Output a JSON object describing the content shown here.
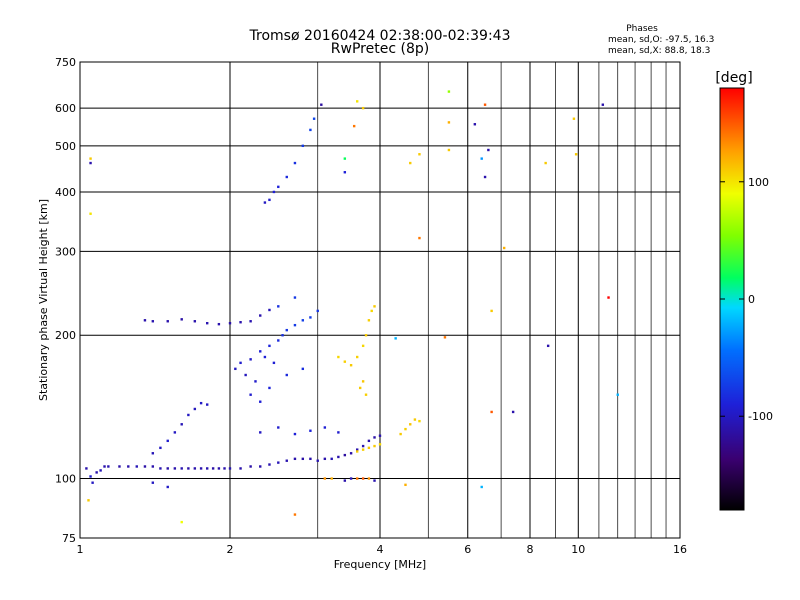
{
  "chart_data": {
    "type": "scatter",
    "title": "Tromsø 20160424 02:38:00-02:39:43",
    "subtitle": "RwPretec (8p)",
    "xlabel": "Frequency [MHz]",
    "ylabel": "Stationary phase Virtual Height [km]",
    "x_scale": "log",
    "y_scale": "log",
    "xlim": [
      1,
      16
    ],
    "ylim": [
      75,
      750
    ],
    "x_ticks": [
      1,
      2,
      4,
      6,
      8,
      10,
      16
    ],
    "x_tick_labels": [
      "1",
      "2",
      "4",
      "6",
      "8",
      "10",
      "16"
    ],
    "y_ticks": [
      75,
      100,
      200,
      300,
      400,
      500,
      600,
      750
    ],
    "y_tick_labels": [
      "75",
      "100",
      "200",
      "300",
      "400",
      "500",
      "600",
      "750"
    ],
    "grid": true,
    "phase_stats": {
      "heading": "Phases",
      "o_line": "mean, sd,O: -97.5, 16.3",
      "x_line": "mean, sd,X:  88.8, 18.3"
    },
    "colorbar": {
      "label": "[deg]",
      "min": -180,
      "max": 180,
      "ticks": [
        100,
        0,
        -100
      ],
      "tick_labels": [
        "100",
        "0",
        "-100"
      ]
    },
    "series": [
      {
        "color_scale_value": "phase",
        "points": [
          {
            "x": 1.03,
            "y": 105,
            "phase": -110
          },
          {
            "x": 1.05,
            "y": 101,
            "phase": -95
          },
          {
            "x": 1.06,
            "y": 98,
            "phase": -100
          },
          {
            "x": 1.08,
            "y": 103,
            "phase": -110
          },
          {
            "x": 1.1,
            "y": 104,
            "phase": -105
          },
          {
            "x": 1.12,
            "y": 106,
            "phase": -110
          },
          {
            "x": 1.14,
            "y": 106,
            "phase": -108
          },
          {
            "x": 1.2,
            "y": 106,
            "phase": -112
          },
          {
            "x": 1.25,
            "y": 106,
            "phase": -110
          },
          {
            "x": 1.3,
            "y": 106,
            "phase": -105
          },
          {
            "x": 1.35,
            "y": 106,
            "phase": -112
          },
          {
            "x": 1.4,
            "y": 106,
            "phase": -110
          },
          {
            "x": 1.45,
            "y": 105,
            "phase": -108
          },
          {
            "x": 1.5,
            "y": 105,
            "phase": -112
          },
          {
            "x": 1.55,
            "y": 105,
            "phase": -110
          },
          {
            "x": 1.6,
            "y": 105,
            "phase": -108
          },
          {
            "x": 1.65,
            "y": 105,
            "phase": -112
          },
          {
            "x": 1.7,
            "y": 105,
            "phase": -110
          },
          {
            "x": 1.75,
            "y": 105,
            "phase": -110
          },
          {
            "x": 1.8,
            "y": 105,
            "phase": -108
          },
          {
            "x": 1.85,
            "y": 105,
            "phase": -112
          },
          {
            "x": 1.9,
            "y": 105,
            "phase": -110
          },
          {
            "x": 1.95,
            "y": 105,
            "phase": -110
          },
          {
            "x": 2.0,
            "y": 105,
            "phase": -108
          },
          {
            "x": 2.1,
            "y": 105,
            "phase": -110
          },
          {
            "x": 2.2,
            "y": 106,
            "phase": -112
          },
          {
            "x": 2.3,
            "y": 106,
            "phase": -110
          },
          {
            "x": 2.4,
            "y": 107,
            "phase": -108
          },
          {
            "x": 2.5,
            "y": 108,
            "phase": -105
          },
          {
            "x": 2.6,
            "y": 109,
            "phase": -108
          },
          {
            "x": 2.7,
            "y": 110,
            "phase": -110
          },
          {
            "x": 2.8,
            "y": 110,
            "phase": -112
          },
          {
            "x": 2.9,
            "y": 110,
            "phase": -110
          },
          {
            "x": 3.0,
            "y": 109,
            "phase": -108
          },
          {
            "x": 3.1,
            "y": 110,
            "phase": -110
          },
          {
            "x": 3.2,
            "y": 110,
            "phase": -105
          },
          {
            "x": 3.3,
            "y": 111,
            "phase": -110
          },
          {
            "x": 3.4,
            "y": 112,
            "phase": -115
          },
          {
            "x": 3.5,
            "y": 113,
            "phase": -112
          },
          {
            "x": 3.6,
            "y": 115,
            "phase": -110
          },
          {
            "x": 3.7,
            "y": 117,
            "phase": -108
          },
          {
            "x": 3.8,
            "y": 120,
            "phase": -110
          },
          {
            "x": 3.9,
            "y": 122,
            "phase": -112
          },
          {
            "x": 4.0,
            "y": 123,
            "phase": -110
          },
          {
            "x": 1.4,
            "y": 113,
            "phase": -105
          },
          {
            "x": 1.45,
            "y": 116,
            "phase": -100
          },
          {
            "x": 1.5,
            "y": 120,
            "phase": -95
          },
          {
            "x": 1.55,
            "y": 125,
            "phase": -100
          },
          {
            "x": 1.6,
            "y": 130,
            "phase": -105
          },
          {
            "x": 1.65,
            "y": 136,
            "phase": -100
          },
          {
            "x": 1.7,
            "y": 140,
            "phase": -102
          },
          {
            "x": 1.75,
            "y": 144,
            "phase": -98
          },
          {
            "x": 1.8,
            "y": 143,
            "phase": -100
          },
          {
            "x": 1.35,
            "y": 215,
            "phase": -110
          },
          {
            "x": 1.4,
            "y": 214,
            "phase": -108
          },
          {
            "x": 1.5,
            "y": 214,
            "phase": -110
          },
          {
            "x": 1.6,
            "y": 216,
            "phase": -112
          },
          {
            "x": 1.7,
            "y": 214,
            "phase": -110
          },
          {
            "x": 1.8,
            "y": 212,
            "phase": -108
          },
          {
            "x": 1.9,
            "y": 211,
            "phase": -110
          },
          {
            "x": 2.0,
            "y": 212,
            "phase": -112
          },
          {
            "x": 2.1,
            "y": 213,
            "phase": -110
          },
          {
            "x": 2.2,
            "y": 214,
            "phase": -108
          },
          {
            "x": 2.3,
            "y": 220,
            "phase": -110
          },
          {
            "x": 2.4,
            "y": 226,
            "phase": -105
          },
          {
            "x": 2.05,
            "y": 170,
            "phase": -100
          },
          {
            "x": 2.1,
            "y": 175,
            "phase": -95
          },
          {
            "x": 2.15,
            "y": 165,
            "phase": -102
          },
          {
            "x": 2.2,
            "y": 178,
            "phase": -98
          },
          {
            "x": 2.25,
            "y": 160,
            "phase": -96
          },
          {
            "x": 2.3,
            "y": 185,
            "phase": -92
          },
          {
            "x": 2.35,
            "y": 180,
            "phase": -90
          },
          {
            "x": 2.4,
            "y": 190,
            "phase": -88
          },
          {
            "x": 2.45,
            "y": 175,
            "phase": -92
          },
          {
            "x": 2.5,
            "y": 195,
            "phase": -85
          },
          {
            "x": 2.55,
            "y": 200,
            "phase": -80
          },
          {
            "x": 2.6,
            "y": 205,
            "phase": -78
          },
          {
            "x": 2.7,
            "y": 210,
            "phase": -75
          },
          {
            "x": 2.8,
            "y": 215,
            "phase": -72
          },
          {
            "x": 2.9,
            "y": 218,
            "phase": -74
          },
          {
            "x": 3.0,
            "y": 225,
            "phase": -78
          },
          {
            "x": 2.2,
            "y": 150,
            "phase": -95
          },
          {
            "x": 2.3,
            "y": 145,
            "phase": -92
          },
          {
            "x": 2.4,
            "y": 155,
            "phase": -88
          },
          {
            "x": 2.6,
            "y": 165,
            "phase": -85
          },
          {
            "x": 2.8,
            "y": 170,
            "phase": -82
          },
          {
            "x": 2.5,
            "y": 230,
            "phase": -80
          },
          {
            "x": 2.7,
            "y": 240,
            "phase": -76
          },
          {
            "x": 2.3,
            "y": 125,
            "phase": -100
          },
          {
            "x": 2.5,
            "y": 128,
            "phase": -95
          },
          {
            "x": 2.7,
            "y": 124,
            "phase": -90
          },
          {
            "x": 2.9,
            "y": 126,
            "phase": -88
          },
          {
            "x": 3.1,
            "y": 128,
            "phase": -92
          },
          {
            "x": 3.3,
            "y": 125,
            "phase": -95
          },
          {
            "x": 2.35,
            "y": 380,
            "phase": -100
          },
          {
            "x": 2.4,
            "y": 385,
            "phase": -95
          },
          {
            "x": 2.45,
            "y": 400,
            "phase": -92
          },
          {
            "x": 2.5,
            "y": 410,
            "phase": -90
          },
          {
            "x": 2.6,
            "y": 430,
            "phase": -85
          },
          {
            "x": 2.7,
            "y": 460,
            "phase": -80
          },
          {
            "x": 2.8,
            "y": 500,
            "phase": -75
          },
          {
            "x": 2.9,
            "y": 540,
            "phase": -70
          },
          {
            "x": 2.95,
            "y": 570,
            "phase": -68
          },
          {
            "x": 3.05,
            "y": 610,
            "phase": -115
          },
          {
            "x": 3.5,
            "y": 173,
            "phase": 110
          },
          {
            "x": 3.6,
            "y": 180,
            "phase": 108
          },
          {
            "x": 3.7,
            "y": 190,
            "phase": 105
          },
          {
            "x": 3.75,
            "y": 200,
            "phase": 110
          },
          {
            "x": 3.8,
            "y": 215,
            "phase": 108
          },
          {
            "x": 3.85,
            "y": 225,
            "phase": 105
          },
          {
            "x": 3.9,
            "y": 230,
            "phase": 110
          },
          {
            "x": 3.7,
            "y": 160,
            "phase": 112
          },
          {
            "x": 3.75,
            "y": 150,
            "phase": 108
          },
          {
            "x": 3.65,
            "y": 155,
            "phase": 110
          },
          {
            "x": 3.3,
            "y": 180,
            "phase": 105
          },
          {
            "x": 3.4,
            "y": 176,
            "phase": 108
          },
          {
            "x": 3.6,
            "y": 114,
            "phase": 110
          },
          {
            "x": 3.7,
            "y": 115,
            "phase": 108
          },
          {
            "x": 3.8,
            "y": 116,
            "phase": 112
          },
          {
            "x": 3.9,
            "y": 117,
            "phase": 110
          },
          {
            "x": 4.0,
            "y": 118,
            "phase": 105
          },
          {
            "x": 4.4,
            "y": 124,
            "phase": 110
          },
          {
            "x": 4.5,
            "y": 127,
            "phase": 108
          },
          {
            "x": 4.6,
            "y": 130,
            "phase": 112
          },
          {
            "x": 4.7,
            "y": 133,
            "phase": 110
          },
          {
            "x": 4.8,
            "y": 132,
            "phase": 105
          },
          {
            "x": 3.1,
            "y": 100,
            "phase": 130
          },
          {
            "x": 3.2,
            "y": 100,
            "phase": 120
          },
          {
            "x": 3.6,
            "y": 100,
            "phase": 140
          },
          {
            "x": 3.7,
            "y": 100,
            "phase": 150
          },
          {
            "x": 3.8,
            "y": 100,
            "phase": 130
          },
          {
            "x": 4.5,
            "y": 97,
            "phase": 120
          },
          {
            "x": 3.5,
            "y": 100,
            "phase": -105
          },
          {
            "x": 3.4,
            "y": 99,
            "phase": -110
          },
          {
            "x": 3.9,
            "y": 99,
            "phase": -108
          },
          {
            "x": 1.05,
            "y": 460,
            "phase": -110
          },
          {
            "x": 1.05,
            "y": 470,
            "phase": 110
          },
          {
            "x": 1.05,
            "y": 360,
            "phase": 100
          },
          {
            "x": 1.04,
            "y": 90,
            "phase": 110
          },
          {
            "x": 3.55,
            "y": 550,
            "phase": 140
          },
          {
            "x": 3.7,
            "y": 600,
            "phase": 110
          },
          {
            "x": 3.6,
            "y": 620,
            "phase": 100
          },
          {
            "x": 3.4,
            "y": 470,
            "phase": 20
          },
          {
            "x": 3.4,
            "y": 440,
            "phase": -90
          },
          {
            "x": 5.5,
            "y": 650,
            "phase": 60
          },
          {
            "x": 5.5,
            "y": 490,
            "phase": 110
          },
          {
            "x": 5.5,
            "y": 560,
            "phase": 120
          },
          {
            "x": 6.5,
            "y": 610,
            "phase": 150
          },
          {
            "x": 6.5,
            "y": 430,
            "phase": -110
          },
          {
            "x": 6.2,
            "y": 555,
            "phase": -110
          },
          {
            "x": 6.4,
            "y": 470,
            "phase": -30
          },
          {
            "x": 6.6,
            "y": 490,
            "phase": -110
          },
          {
            "x": 4.8,
            "y": 480,
            "phase": 110
          },
          {
            "x": 4.6,
            "y": 460,
            "phase": 110
          },
          {
            "x": 4.8,
            "y": 320,
            "phase": 140
          },
          {
            "x": 7.1,
            "y": 305,
            "phase": 120
          },
          {
            "x": 6.7,
            "y": 225,
            "phase": 110
          },
          {
            "x": 11.5,
            "y": 240,
            "phase": 180
          },
          {
            "x": 11.2,
            "y": 610,
            "phase": -110
          },
          {
            "x": 12.0,
            "y": 150,
            "phase": -20
          },
          {
            "x": 9.8,
            "y": 570,
            "phase": 110
          },
          {
            "x": 9.9,
            "y": 480,
            "phase": 110
          },
          {
            "x": 8.6,
            "y": 460,
            "phase": 110
          },
          {
            "x": 8.7,
            "y": 190,
            "phase": -110
          },
          {
            "x": 5.4,
            "y": 198,
            "phase": 140
          },
          {
            "x": 4.3,
            "y": 197,
            "phase": -20
          },
          {
            "x": 7.4,
            "y": 138,
            "phase": -110
          },
          {
            "x": 6.7,
            "y": 138,
            "phase": 150
          },
          {
            "x": 6.4,
            "y": 96,
            "phase": -20
          },
          {
            "x": 2.7,
            "y": 84,
            "phase": 140
          },
          {
            "x": 1.6,
            "y": 81,
            "phase": 90
          },
          {
            "x": 1.4,
            "y": 98,
            "phase": -100
          },
          {
            "x": 1.5,
            "y": 96,
            "phase": -98
          }
        ]
      }
    ]
  }
}
